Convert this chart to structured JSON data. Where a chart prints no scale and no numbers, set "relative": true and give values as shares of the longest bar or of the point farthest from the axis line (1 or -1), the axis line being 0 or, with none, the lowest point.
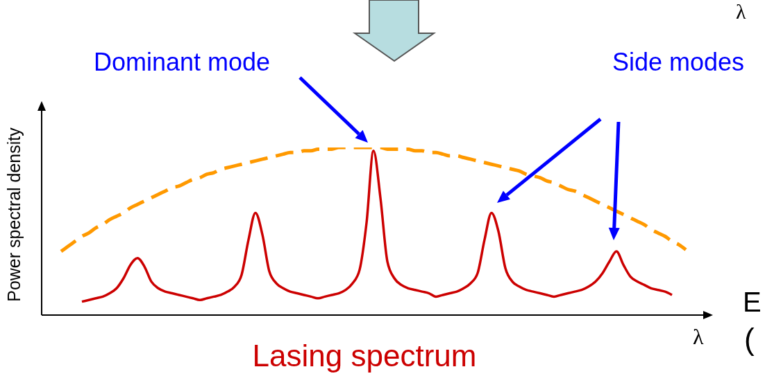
{
  "chart_data": {
    "type": "line",
    "relative": true,
    "title": "Lasing spectrum",
    "ylabel": "Power spectral density",
    "xlabel": "λ",
    "marker": "none",
    "annotations": [
      "Dominant mode",
      "Side modes",
      "λ",
      "E",
      "("
    ],
    "categories": [
      null,
      null,
      null,
      null,
      null,
      null,
      null,
      null,
      null,
      null,
      null,
      null,
      null,
      null,
      null,
      null,
      null,
      null,
      null,
      null,
      null,
      null,
      null,
      null,
      null,
      null,
      null,
      null,
      null,
      null,
      null,
      null,
      null,
      null,
      null,
      null,
      null,
      null,
      null,
      null,
      null,
      null,
      null,
      null,
      null,
      null,
      null,
      null,
      null,
      null,
      null,
      null,
      null,
      null,
      null,
      null,
      null,
      null,
      null,
      null,
      null,
      null,
      null,
      null,
      null,
      null,
      null,
      null,
      null,
      null,
      null,
      null,
      null,
      null,
      null,
      null,
      null,
      null,
      null,
      null,
      null,
      null,
      null,
      null,
      null,
      null,
      null,
      null,
      null,
      null,
      null
    ],
    "series": [
      {
        "color": "#ff9900",
        "line_style": "dashed",
        "values": [
          0.38,
          0.41,
          0.44,
          0.47,
          0.49,
          0.52,
          0.54,
          0.57,
          0.59,
          0.61,
          0.64,
          0.66,
          0.68,
          0.7,
          0.72,
          0.74,
          0.76,
          0.77,
          0.79,
          0.81,
          0.82,
          0.84,
          0.85,
          0.87,
          0.88,
          0.89,
          0.9,
          0.91,
          0.92,
          0.93,
          0.94,
          0.95,
          0.96,
          0.97,
          0.97,
          0.98,
          0.98,
          0.99,
          0.99,
          0.99,
          1.0,
          1.0,
          1.0,
          1.0,
          1.0,
          1.0,
          1.0,
          0.99,
          0.99,
          0.99,
          0.99,
          0.98,
          0.98,
          0.97,
          0.97,
          0.96,
          0.95,
          0.95,
          0.94,
          0.93,
          0.92,
          0.91,
          0.9,
          0.89,
          0.88,
          0.87,
          0.86,
          0.84,
          0.83,
          0.82,
          0.8,
          0.79,
          0.77,
          0.75,
          0.74,
          0.72,
          0.7,
          0.68,
          0.66,
          0.64,
          0.62,
          0.6,
          0.58,
          0.56,
          0.54,
          0.51,
          0.49,
          0.47,
          0.44,
          0.42,
          0.39
        ]
      },
      {
        "color": "#cc0000",
        "line_style": "solid",
        "values": [
          null,
          null,
          null,
          0.08,
          0.09,
          0.1,
          0.11,
          0.13,
          0.16,
          0.22,
          0.3,
          0.34,
          0.29,
          0.2,
          0.16,
          0.14,
          0.13,
          0.12,
          0.11,
          0.1,
          0.09,
          0.1,
          0.11,
          0.12,
          0.14,
          0.17,
          0.24,
          0.45,
          0.61,
          0.48,
          0.26,
          0.19,
          0.16,
          0.14,
          0.13,
          0.12,
          0.11,
          0.1,
          0.11,
          0.12,
          0.13,
          0.15,
          0.19,
          0.27,
          0.55,
          0.98,
          0.7,
          0.32,
          0.22,
          0.18,
          0.16,
          0.15,
          0.14,
          0.13,
          0.11,
          0.12,
          0.13,
          0.14,
          0.16,
          0.19,
          0.25,
          0.45,
          0.61,
          0.5,
          0.28,
          0.2,
          0.17,
          0.15,
          0.14,
          0.13,
          0.12,
          0.11,
          0.12,
          0.13,
          0.14,
          0.15,
          0.17,
          0.2,
          0.25,
          0.32,
          0.38,
          0.3,
          0.23,
          0.2,
          0.18,
          0.16,
          0.15,
          0.14,
          0.12,
          null,
          null
        ]
      }
    ]
  }
}
